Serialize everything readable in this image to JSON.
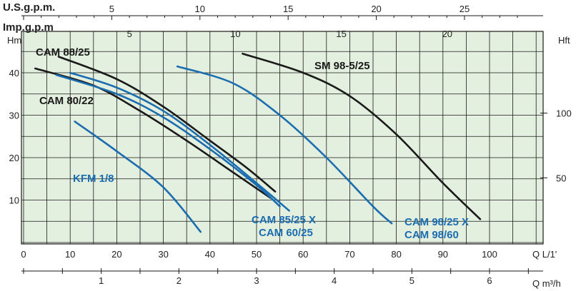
{
  "chart_data": {
    "type": "line",
    "axis_labels": {
      "us_gpm": "U.S.g.p.m.",
      "imp_gpm": "Imp.g.p.m",
      "hm": "Hm",
      "hft": "Hft",
      "q_lmin": "Q  L/1'",
      "q_m3h": "Q  m³/h"
    },
    "x_axis_lmin": {
      "min": 0,
      "max": 110,
      "ticks": [
        0,
        10,
        20,
        30,
        40,
        50,
        60,
        70,
        80,
        90,
        100
      ],
      "tick_labels": [
        "0",
        "10",
        "20",
        "30",
        "40",
        "50",
        "60",
        "70",
        "80",
        "90",
        "100"
      ]
    },
    "y_axis_hm": {
      "min": 0,
      "max": 50,
      "ticks": [
        10,
        20,
        30,
        40
      ],
      "tick_labels": [
        "10",
        "20",
        "30",
        "40"
      ]
    },
    "us_gpm_axis": {
      "ticks": [
        5,
        10,
        15,
        20,
        25
      ],
      "tick_labels": [
        "5",
        "10",
        "15",
        "20",
        "25"
      ]
    },
    "imp_gpm_axis": {
      "ticks": [
        5,
        10,
        15,
        20
      ],
      "tick_labels": [
        "5",
        "10",
        "15",
        "20"
      ]
    },
    "hft_axis": {
      "ticks": [
        50,
        100
      ],
      "tick_labels": [
        "50",
        "100"
      ]
    },
    "m3h_axis": {
      "ticks": [
        1,
        2,
        3,
        4,
        5,
        6
      ],
      "tick_labels": [
        "1",
        "2",
        "3",
        "4",
        "5",
        "6"
      ]
    },
    "series": [
      {
        "name": "CAM 88/25",
        "color": "#1a1a1a",
        "points": [
          [
            7.5,
            43.8
          ],
          [
            20,
            38.5
          ],
          [
            30,
            32
          ],
          [
            40,
            24
          ],
          [
            48,
            17.5
          ],
          [
            54,
            12
          ]
        ]
      },
      {
        "name": "CAM 80/22",
        "color": "#1a1a1a",
        "points": [
          [
            2.5,
            41
          ],
          [
            15,
            37
          ],
          [
            25,
            31
          ],
          [
            35,
            24
          ],
          [
            45,
            16.5
          ],
          [
            53,
            10.5
          ]
        ]
      },
      {
        "name": "CAM 85/25 X",
        "color": "#1b6db0",
        "points": [
          [
            10,
            40
          ],
          [
            20,
            36.5
          ],
          [
            30,
            31
          ],
          [
            40,
            23
          ],
          [
            50,
            14
          ],
          [
            57,
            7.5
          ]
        ]
      },
      {
        "name": "CAM 60/25",
        "color": "#1b6db0",
        "points": [
          [
            7,
            39.5
          ],
          [
            20,
            35
          ],
          [
            30,
            29.5
          ],
          [
            40,
            22
          ],
          [
            50,
            13.5
          ],
          [
            55,
            8.5
          ]
        ]
      },
      {
        "name": "KFM 1/8",
        "color": "#1b6db0",
        "points": [
          [
            11,
            28.5
          ],
          [
            20,
            21.5
          ],
          [
            30,
            13
          ],
          [
            38,
            2.5
          ]
        ]
      },
      {
        "name": "CAM 98/25 X",
        "color": "#1b6db0",
        "points": [
          [
            33,
            41.5
          ],
          [
            45,
            37.5
          ],
          [
            55,
            30
          ],
          [
            65,
            20
          ],
          [
            75,
            8.5
          ],
          [
            79,
            4.5
          ]
        ]
      },
      {
        "name": "SM 98-5/25",
        "color": "#1a1a1a",
        "points": [
          [
            47,
            44.5
          ],
          [
            60,
            40
          ],
          [
            70,
            34.5
          ],
          [
            80,
            25.5
          ],
          [
            90,
            14
          ],
          [
            98,
            5.5
          ]
        ]
      }
    ],
    "labels": {
      "cam88": "CAM 88/25",
      "cam80": "CAM 80/22",
      "kfm": "KFM 1/8",
      "sm": "SM 98-5/25",
      "cam85": "CAM 85/25 X",
      "cam60": "CAM 60/25",
      "cam98x": "CAM 98/25 X",
      "cam9860": "CAM 98/60"
    },
    "colors": {
      "grid_bg": "#e4f0df",
      "grid_line": "#1a1a1a",
      "blue": "#1b6db0",
      "black": "#1a1a1a"
    },
    "grid": true
  }
}
